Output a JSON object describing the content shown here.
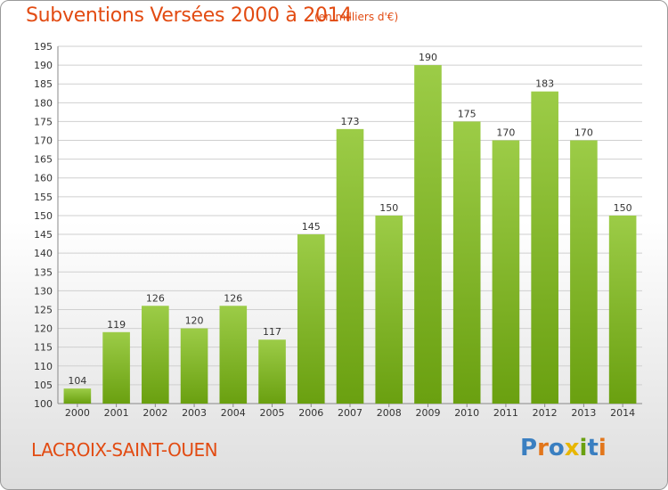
{
  "header": {
    "title": "Subventions Versées 2000 à 2014",
    "unit_note": "(en milliers d'€)"
  },
  "footer": {
    "place": "LACROIX-SAINT-OUEN",
    "logo_text": "Proxiti"
  },
  "colors": {
    "title": "#e24b12",
    "bar_top": "#9ccc47",
    "bar_bottom": "#6aa010",
    "grid": "#cfcfcf"
  },
  "chart_data": {
    "type": "bar",
    "title": "Subventions Versées 2000 à 2014",
    "subtitle": "(en milliers d'€)",
    "categories": [
      "2000",
      "2001",
      "2002",
      "2003",
      "2004",
      "2005",
      "2006",
      "2007",
      "2008",
      "2009",
      "2010",
      "2011",
      "2012",
      "2013",
      "2014"
    ],
    "values": [
      104,
      119,
      126,
      120,
      126,
      117,
      145,
      173,
      150,
      190,
      175,
      170,
      183,
      170,
      150
    ],
    "ylim": [
      100,
      195
    ],
    "ytick_step": 5,
    "grid": true,
    "data_labels": true
  }
}
